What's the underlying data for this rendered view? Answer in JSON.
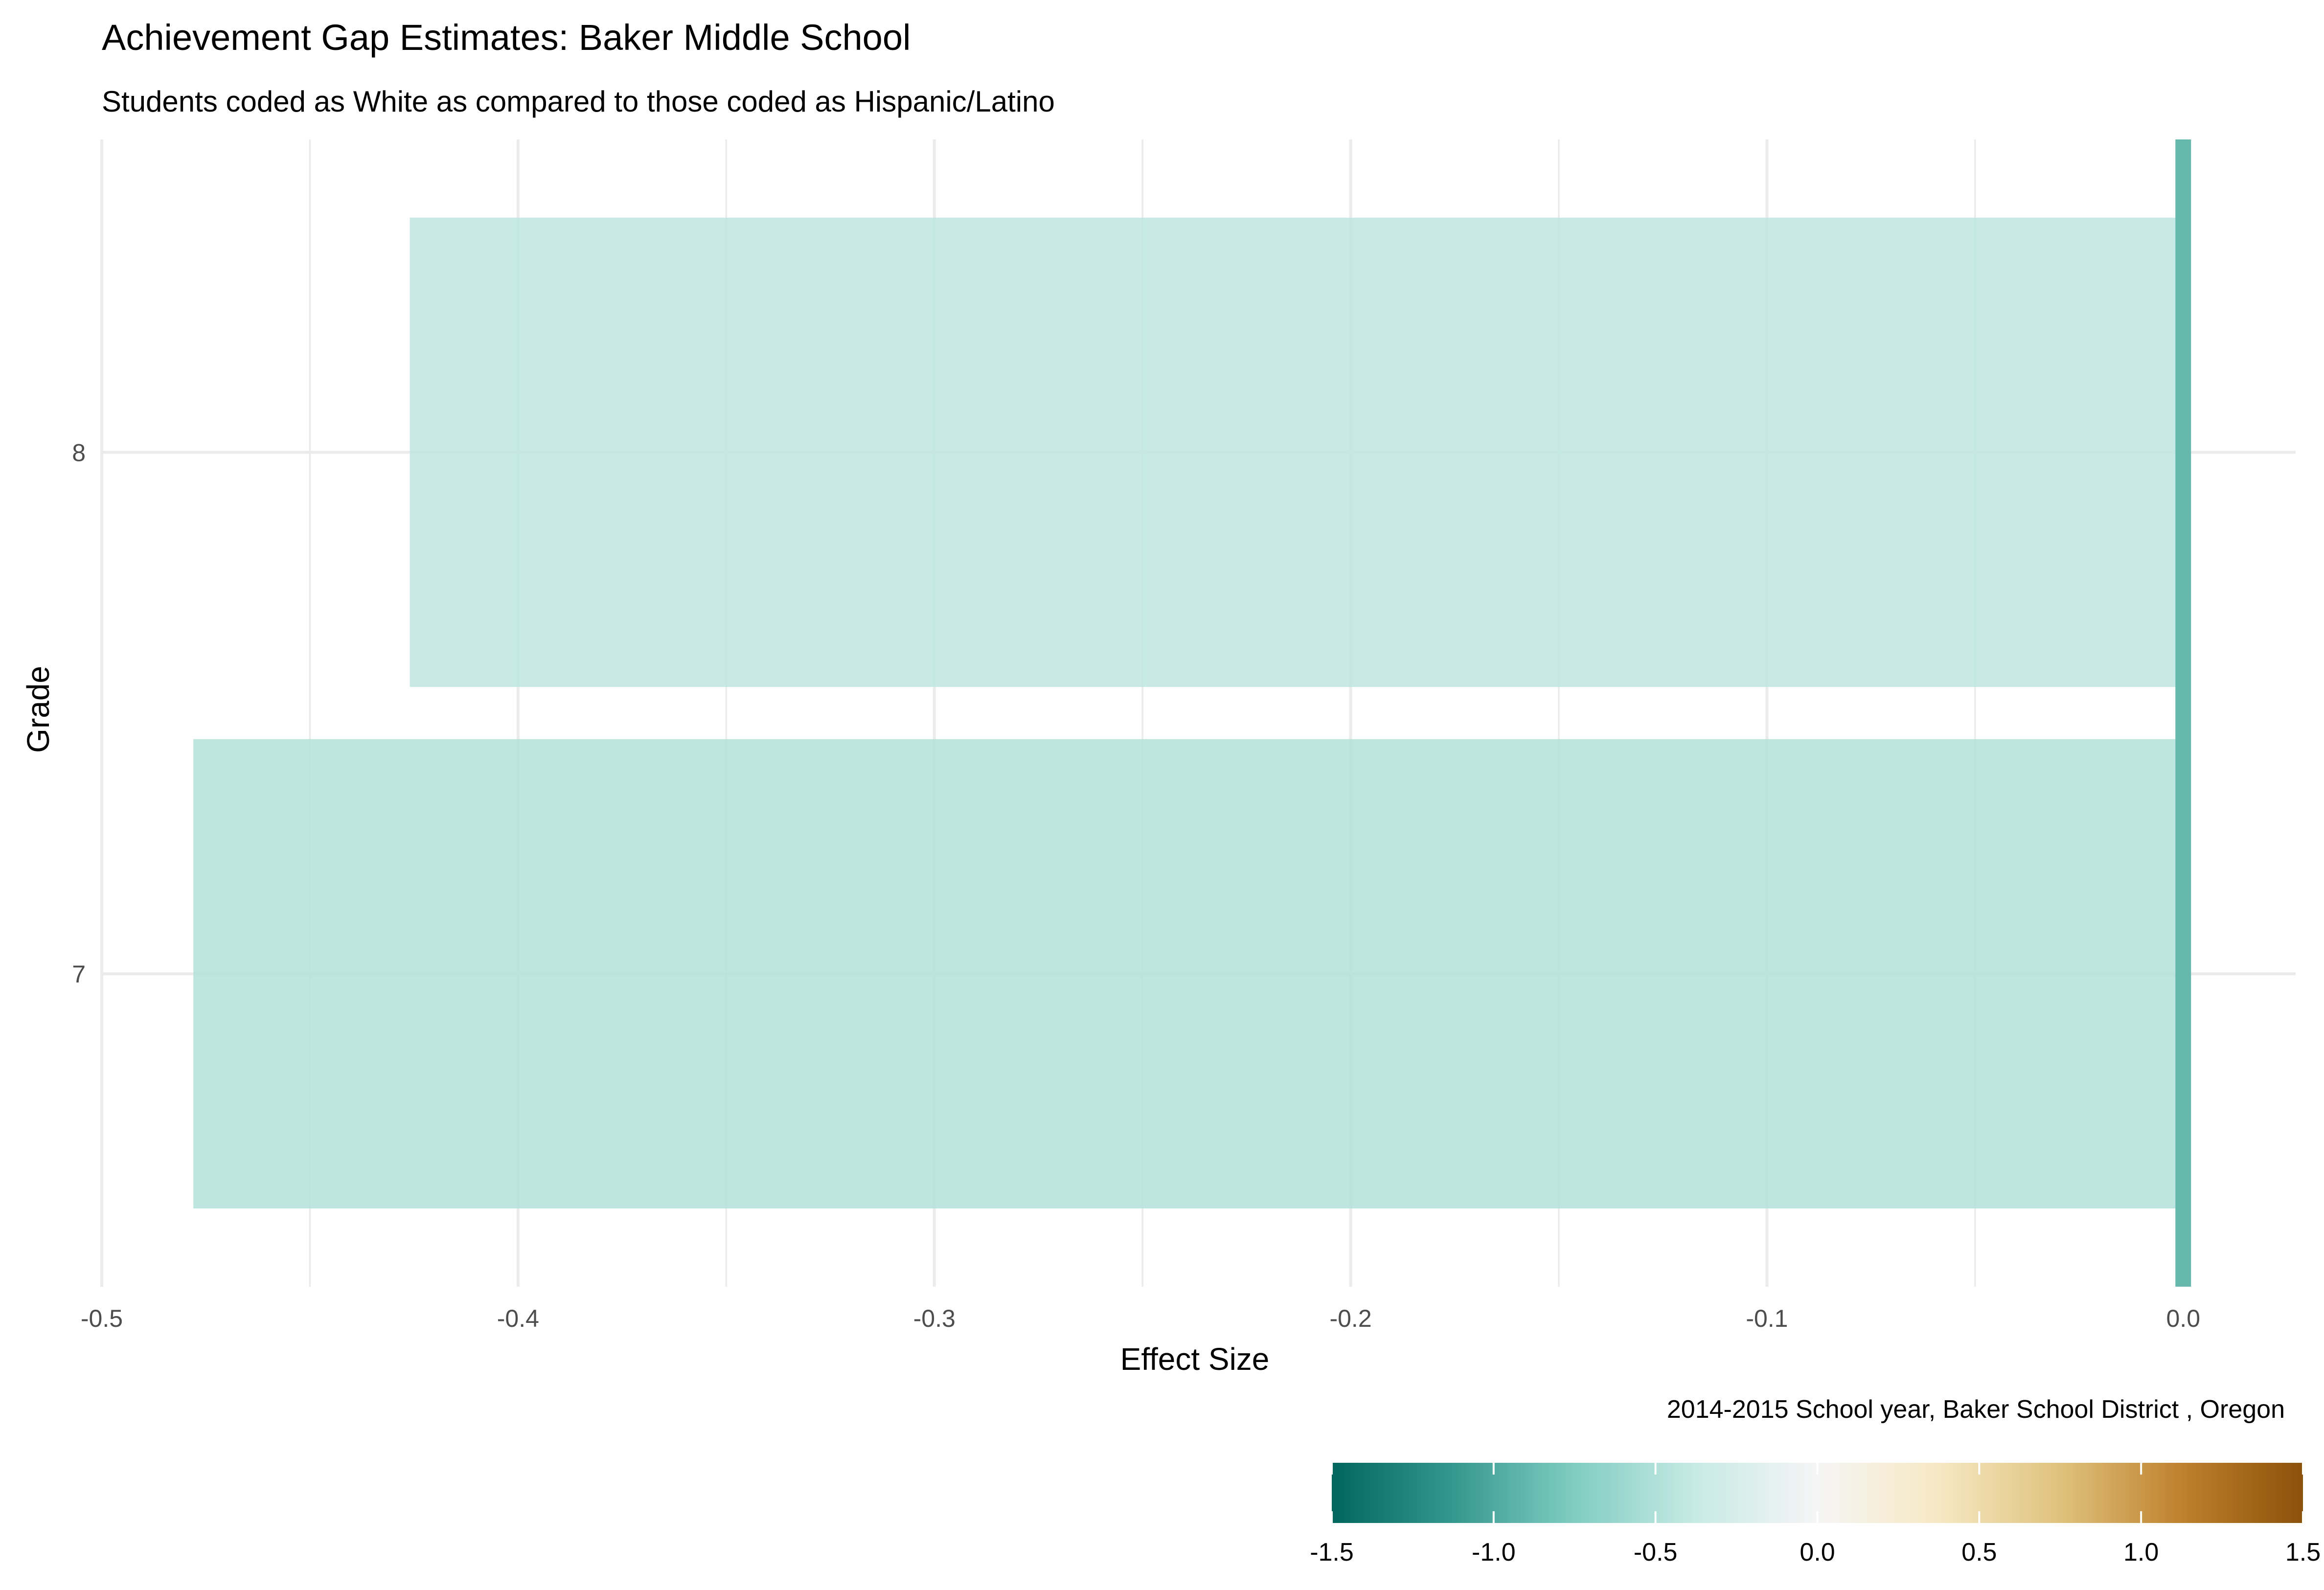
{
  "chart_data": {
    "type": "bar",
    "orientation": "horizontal",
    "title": "Achievement Gap Estimates: Baker Middle School",
    "subtitle": "Students coded as White as compared to those coded as Hispanic/Latino",
    "caption": "2014-2015 School year,  Baker School District , Oregon",
    "xlabel": "Effect Size",
    "ylabel": "Grade",
    "categories": [
      "7",
      "8"
    ],
    "values": [
      -0.478,
      -0.426
    ],
    "xlim": [
      -0.5,
      0.027
    ],
    "x_ticks": [
      -0.5,
      -0.4,
      -0.3,
      -0.2,
      -0.1,
      0.0
    ],
    "x_tick_labels": [
      "-0.5",
      "-0.4",
      "-0.3",
      "-0.2",
      "-0.1",
      "0.0"
    ],
    "reference_line": {
      "x": 0.0,
      "color": "#66b8ad"
    },
    "grid": true,
    "legend": {
      "type": "colorbar",
      "placement": "bottom-right",
      "range": [
        -1.5,
        1.5
      ],
      "ticks": [
        -1.5,
        -1.0,
        -0.5,
        0.0,
        0.5,
        1.0,
        1.5
      ],
      "tick_labels": [
        "-1.5",
        "-1.0",
        "-0.5",
        "0.0",
        "0.5",
        "1.0",
        "1.5"
      ],
      "palette": [
        "#01665e",
        "#35978f",
        "#80cdc1",
        "#c7eae5",
        "#f5f5f5",
        "#f6e8c3",
        "#dfc27d",
        "#bf812d",
        "#8c510a"
      ]
    },
    "colors": {
      "grid": "#ebebeb",
      "tick_text": "#4d4d4d",
      "text": "#000000"
    }
  }
}
